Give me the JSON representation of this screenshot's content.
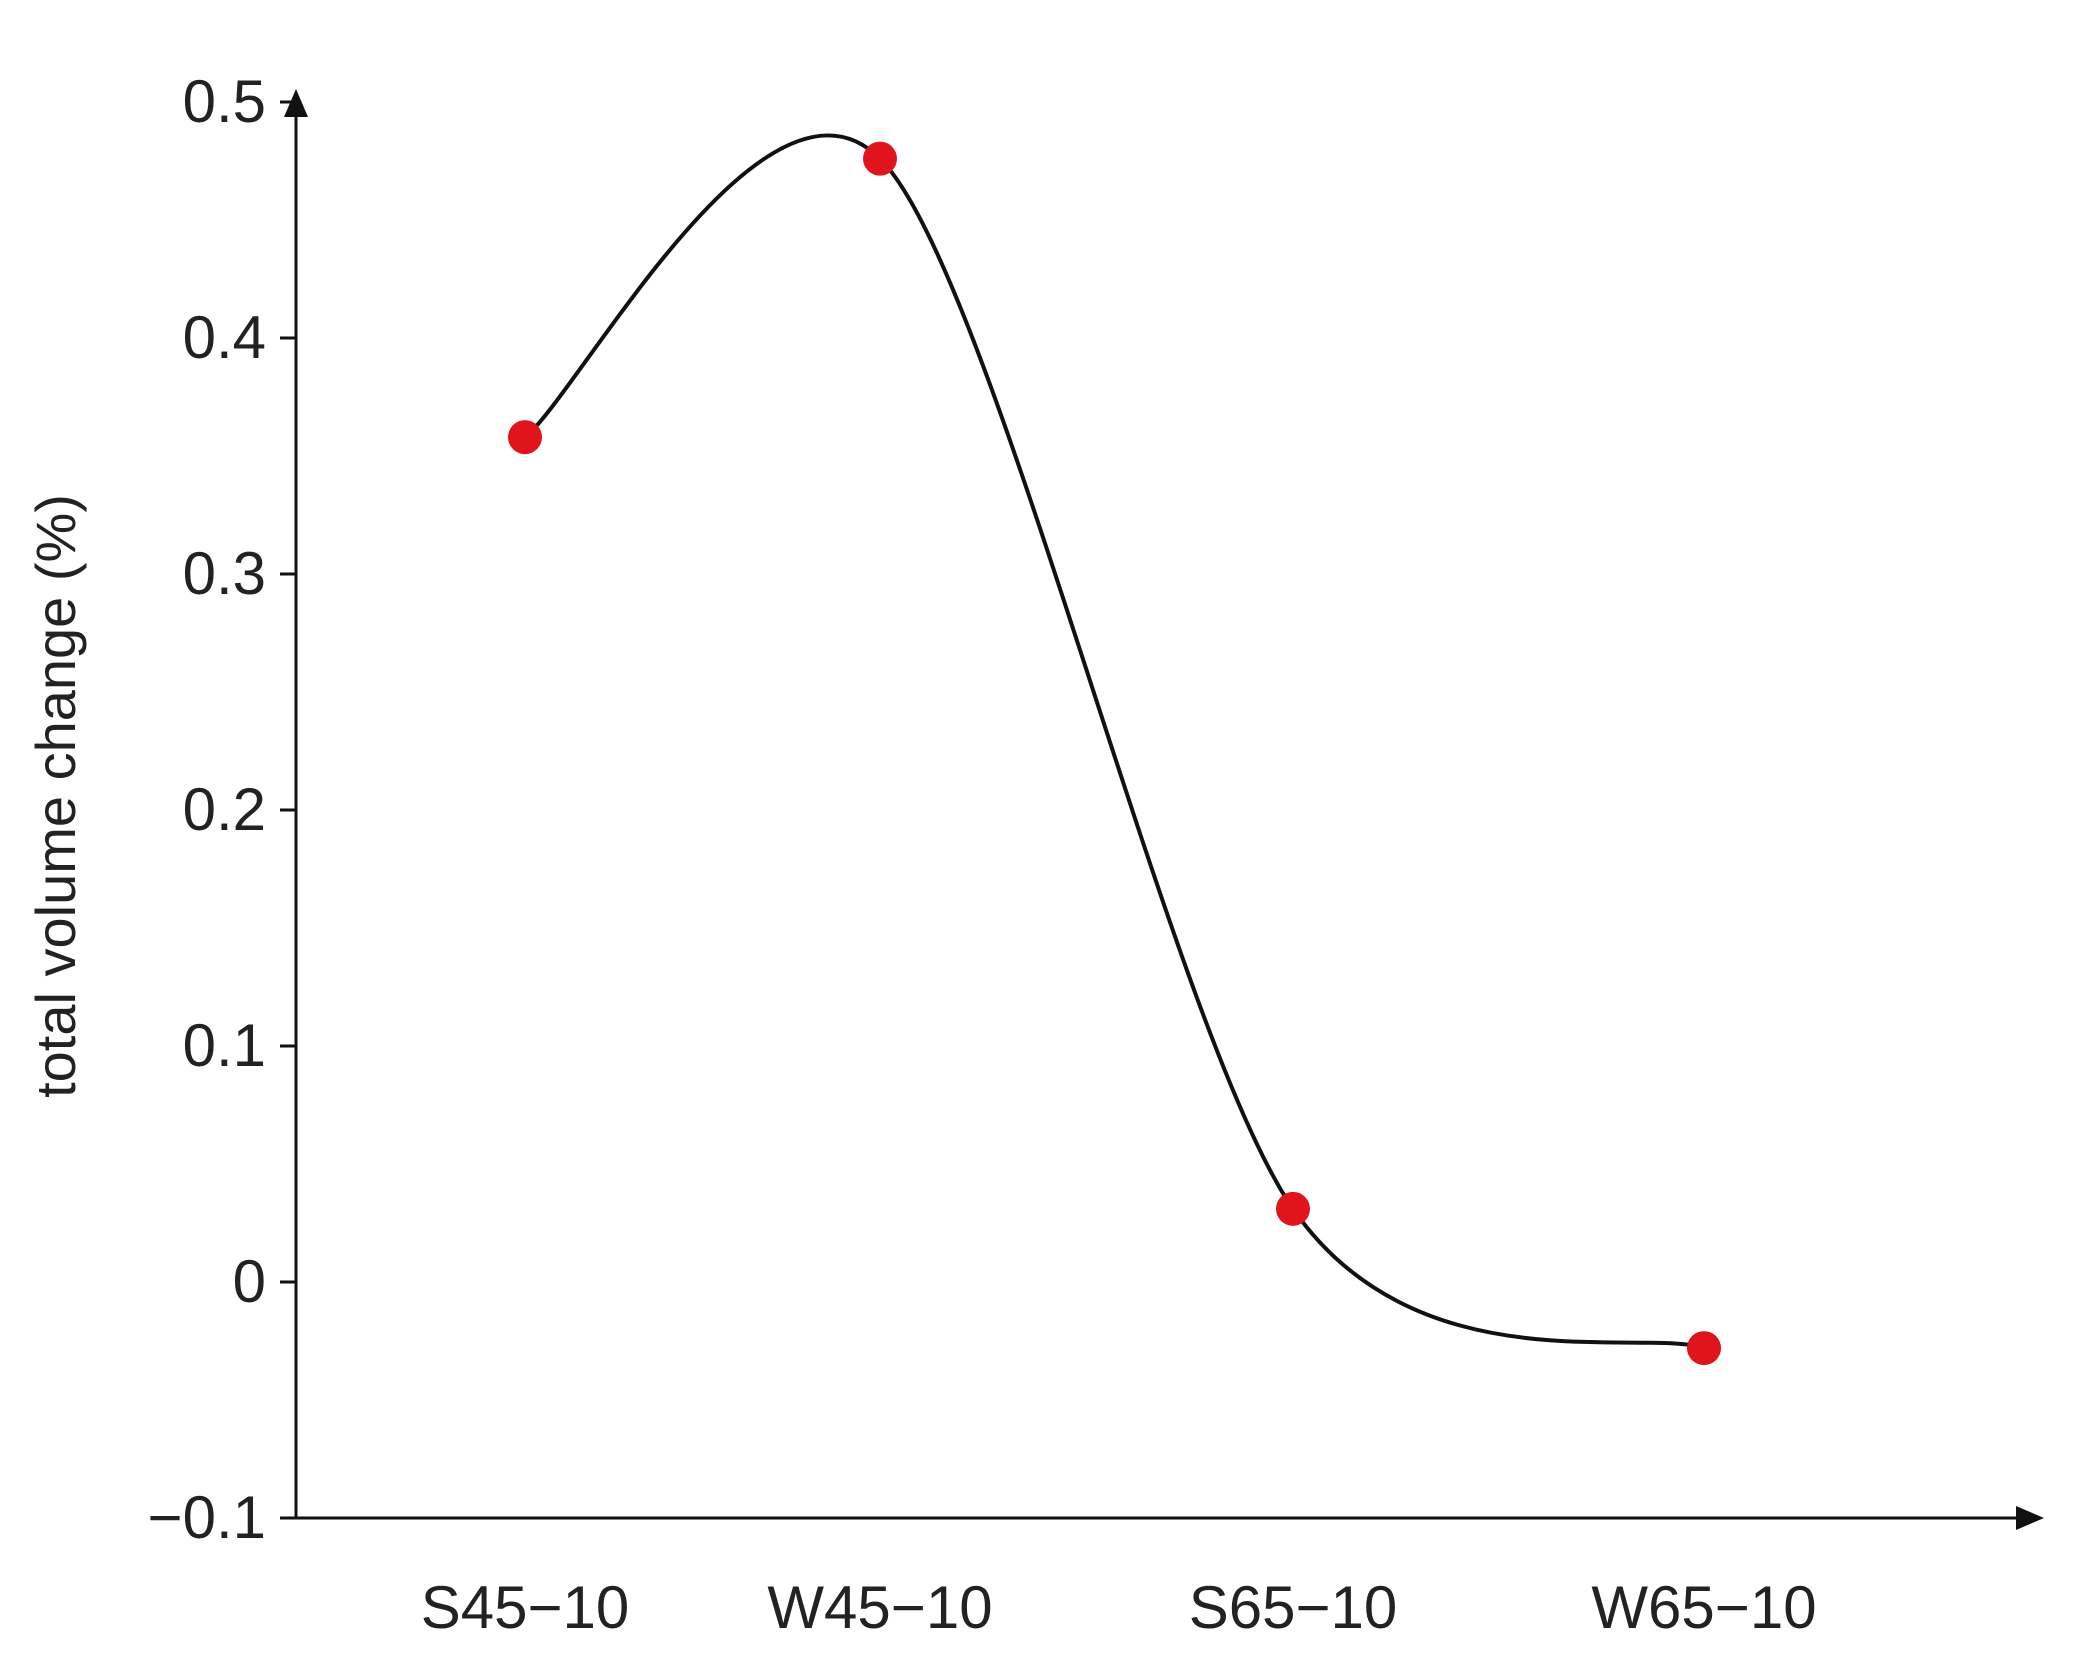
{
  "chart_data": {
    "type": "line",
    "title": "",
    "xlabel": "",
    "ylabel": "total volume change (%)",
    "categories": [
      "S45−10",
      "W45−10",
      "S65−10",
      "W65−10"
    ],
    "series": [
      {
        "values": [
          0.358,
          0.476,
          0.031,
          -0.028
        ],
        "line_style": "smooth",
        "marker": "circle"
      }
    ],
    "ylim": [
      -0.1,
      0.5
    ],
    "yticks": [
      -0.1,
      0,
      0.1,
      0.2,
      0.3,
      0.4,
      0.5
    ],
    "ytick_labels": [
      "−0.1",
      "0",
      "0.1",
      "0.2",
      "0.3",
      "0.4",
      "0.5"
    ],
    "grid": false,
    "legend": "none",
    "colors": {
      "line": "#111111",
      "marker": "#e0141b",
      "axis": "#111111",
      "text": "#222222"
    }
  }
}
